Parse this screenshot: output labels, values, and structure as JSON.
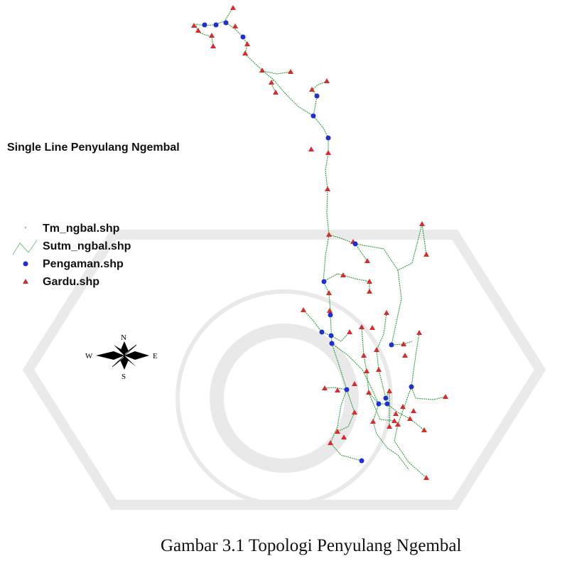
{
  "map": {
    "title": "Single Line Penyulang Ngembal",
    "legend": [
      "Tm_ngbal.shp",
      "Sutm_ngbal.shp",
      "Pengaman.shp",
      "Gardu.shp"
    ],
    "compass": {
      "north": "N",
      "east": "E",
      "south": "S",
      "west": "W"
    }
  },
  "caption": "Gambar 3.1 Topologi Penyulang Ngembal"
}
